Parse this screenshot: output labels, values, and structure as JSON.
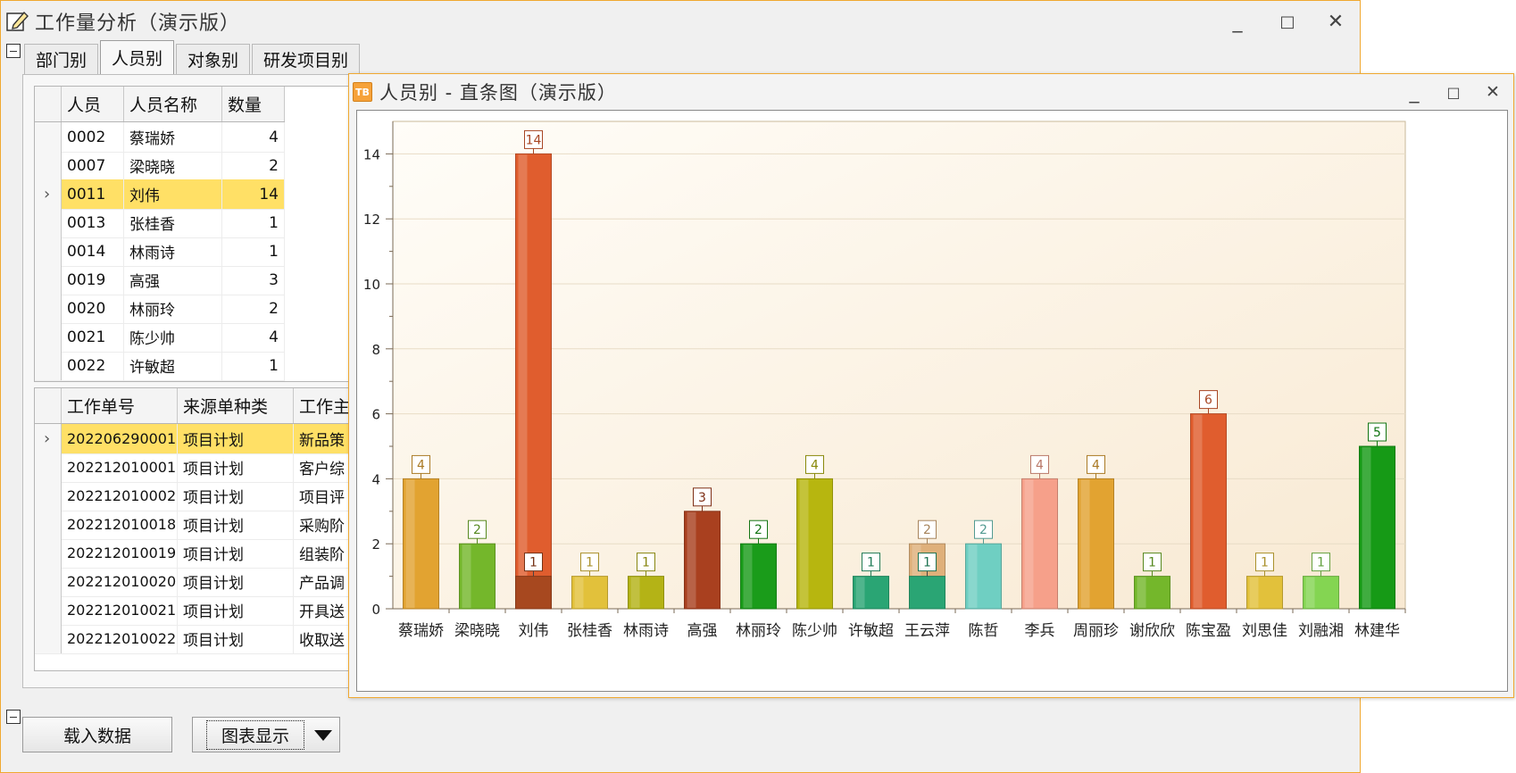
{
  "main_window": {
    "title": "工作量分析（演示版）",
    "controls": {
      "minimize": "_",
      "maximize": "□",
      "close": "✕"
    },
    "tabs": [
      {
        "label": "部门别",
        "active": false
      },
      {
        "label": "人员别",
        "active": true
      },
      {
        "label": "对象别",
        "active": false
      },
      {
        "label": "研发项目别",
        "active": false
      }
    ],
    "person_grid": {
      "columns": [
        "人员",
        "人员名称",
        "数量"
      ],
      "rows": [
        {
          "id": "0002",
          "name": "蔡瑞娇",
          "count": "4",
          "selected": false
        },
        {
          "id": "0007",
          "name": "梁晓晓",
          "count": "2",
          "selected": false
        },
        {
          "id": "0011",
          "name": "刘伟",
          "count": "14",
          "selected": true
        },
        {
          "id": "0013",
          "name": "张桂香",
          "count": "1",
          "selected": false
        },
        {
          "id": "0014",
          "name": "林雨诗",
          "count": "1",
          "selected": false
        },
        {
          "id": "0019",
          "name": "高强",
          "count": "3",
          "selected": false
        },
        {
          "id": "0020",
          "name": "林丽玲",
          "count": "2",
          "selected": false
        },
        {
          "id": "0021",
          "name": "陈少帅",
          "count": "4",
          "selected": false
        },
        {
          "id": "0022",
          "name": "许敏超",
          "count": "1",
          "selected": false
        }
      ]
    },
    "work_grid": {
      "columns": [
        "工作单号",
        "来源单种类",
        "工作主"
      ],
      "rows": [
        {
          "no": "202206290001",
          "source": "项目计划",
          "subject": "新品策",
          "selected": true
        },
        {
          "no": "202212010001",
          "source": "项目计划",
          "subject": "客户综",
          "selected": false
        },
        {
          "no": "202212010002",
          "source": "项目计划",
          "subject": "项目评",
          "selected": false
        },
        {
          "no": "202212010018",
          "source": "项目计划",
          "subject": "采购阶",
          "selected": false
        },
        {
          "no": "202212010019",
          "source": "项目计划",
          "subject": "组装阶",
          "selected": false
        },
        {
          "no": "202212010020",
          "source": "项目计划",
          "subject": "产品调",
          "selected": false
        },
        {
          "no": "202212010021",
          "source": "项目计划",
          "subject": "开具送",
          "selected": false
        },
        {
          "no": "202212010022",
          "source": "项目计划",
          "subject": "收取送",
          "selected": false
        }
      ]
    },
    "buttons": {
      "load": "载入数据",
      "chart_display": "图表显示"
    }
  },
  "chart_window": {
    "title": "人员别 - 直条图（演示版）",
    "icon_text": "TB",
    "controls": {
      "minimize": "_",
      "maximize": "□",
      "close": "✕"
    }
  },
  "chart_data": {
    "type": "bar",
    "title": "",
    "xlabel": "",
    "ylabel": "",
    "ylim": [
      0,
      15
    ],
    "yticks": [
      0,
      2,
      4,
      6,
      8,
      10,
      12,
      14
    ],
    "grid": true,
    "categories": [
      "蔡瑞娇",
      "梁晓晓",
      "刘伟",
      "张桂香",
      "林雨诗",
      "高强",
      "林丽玲",
      "陈少帅",
      "许敏超",
      "王云萍",
      "陈哲",
      "李兵",
      "周丽珍",
      "谢欣欣",
      "陈宝盈",
      "刘思佳",
      "刘融湘",
      "林建华"
    ],
    "values": [
      4,
      2,
      14,
      1,
      1,
      3,
      2,
      4,
      1,
      2,
      2,
      4,
      4,
      1,
      6,
      1,
      1,
      5
    ],
    "stacked_segments": [
      {
        "category": "刘伟",
        "value": 1
      },
      {
        "category": "王云萍",
        "value": 1
      }
    ],
    "colors": [
      "#e2a331",
      "#74b72b",
      "#e05d2e",
      "#e2c13b",
      "#b4b316",
      "#a9401f",
      "#1a9c1a",
      "#b7b60f",
      "#2aa574",
      "#dfb07a",
      "#6fcfc2",
      "#f6a08a",
      "#e2a331",
      "#74b72b",
      "#e05d2e",
      "#e2c13b",
      "#84d552",
      "#169a16"
    ],
    "segment_colors": {
      "刘伟": "#a7481f",
      "王云萍": "#2aa574"
    }
  }
}
